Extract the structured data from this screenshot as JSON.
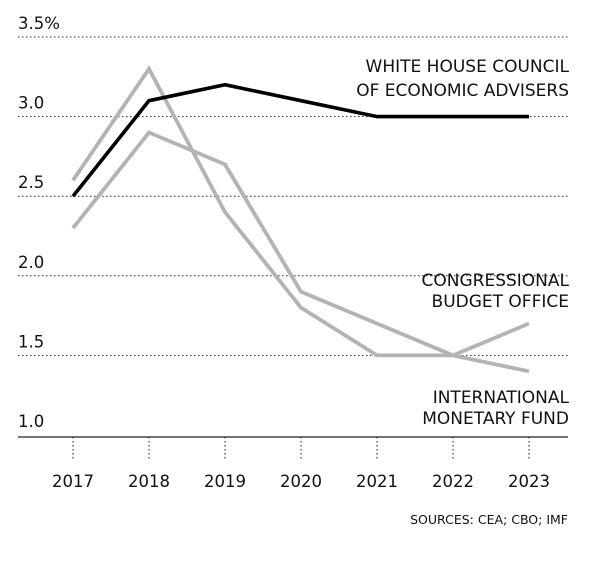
{
  "chart_data": {
    "type": "line",
    "x": [
      2017,
      2018,
      2019,
      2020,
      2021,
      2022,
      2023
    ],
    "ylim": [
      1.0,
      3.5
    ],
    "yticks": [
      1.0,
      1.5,
      2.0,
      2.5,
      3.0,
      3.5
    ],
    "ytick_labels": [
      "1.0",
      "1.5",
      "2.0",
      "2.5",
      "3.0",
      "3.5%"
    ],
    "xtick_labels": [
      "2017",
      "2018",
      "2019",
      "2020",
      "2021",
      "2022",
      "2023"
    ],
    "grid": true,
    "legend": "direct labels at right",
    "series": [
      {
        "name": "WHITE HOUSE COUNCIL OF ECONOMIC ADVISERS",
        "label_lines": [
          "WHITE HOUSE COUNCIL",
          "OF ECONOMIC ADVISERS"
        ],
        "color": "#000000",
        "values": [
          2.5,
          3.1,
          3.2,
          3.1,
          3.0,
          3.0,
          3.0
        ]
      },
      {
        "name": "CONGRESSIONAL BUDGET OFFICE",
        "label_lines": [
          "CONGRESSIONAL",
          "BUDGET OFFICE"
        ],
        "color": "#b3b3b3",
        "values": [
          2.6,
          3.3,
          2.4,
          1.8,
          1.5,
          1.5,
          1.7
        ]
      },
      {
        "name": "INTERNATIONAL MONETARY FUND",
        "label_lines": [
          "INTERNATIONAL",
          "MONETARY FUND"
        ],
        "color": "#b3b3b3",
        "values": [
          2.3,
          2.9,
          2.7,
          1.9,
          1.7,
          1.5,
          1.4
        ]
      }
    ],
    "source": "SOURCES: CEA; CBO; IMF"
  }
}
